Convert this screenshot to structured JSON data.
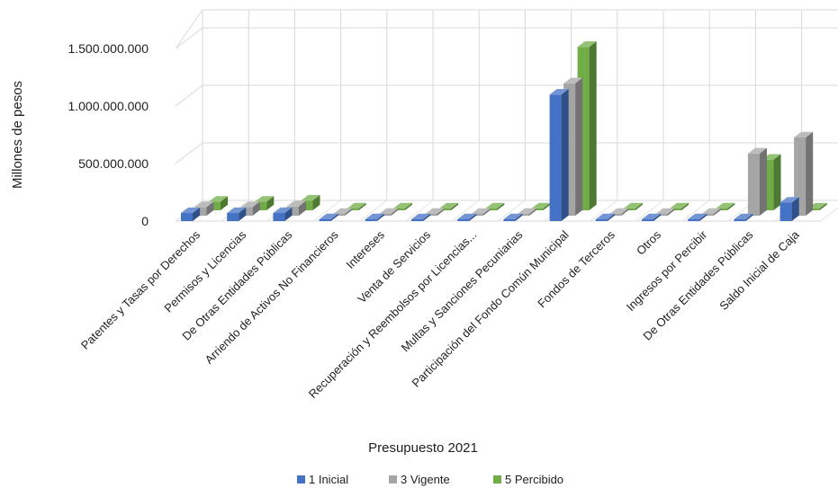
{
  "chart_data": {
    "type": "bar",
    "xlabel": "Presupuesto 2021",
    "ylabel": "Millones de pesos",
    "ylim": [
      0,
      1500000000
    ],
    "yticks": [
      0,
      500000000,
      1000000000,
      1500000000
    ],
    "ytick_labels": [
      "0",
      "500.000.000",
      "1.000.000.000",
      "1.500.000.000"
    ],
    "categories": [
      "Patentes y Tasas por Derechos",
      "Permisos y Licencias",
      "De Otras Entidades Públicas",
      "Arriendo de Activos No Financieros",
      "Intereses",
      "Venta de Servicios",
      "Recuperación y Reembolsos por Licencias...",
      "Multas y Sanciones Pecuniarias",
      "Participación del Fondo Común Municipal",
      "Fondos de Terceros",
      "Otros",
      "Ingresos por Percibir",
      "De Otras Entidades Públicas",
      "Saldo Inicial de Caja"
    ],
    "series": [
      {
        "name": "1 Inicial",
        "color": "#4472c4",
        "values": [
          70000000,
          70000000,
          70000000,
          5000000,
          5000000,
          3000000,
          5000000,
          3000000,
          1100000000,
          2000000,
          3000000,
          2000000,
          2000000,
          160000000
        ]
      },
      {
        "name": "3 Vigente",
        "color": "#a5a5a5",
        "values": [
          75000000,
          75000000,
          80000000,
          5000000,
          5000000,
          3000000,
          5000000,
          5000000,
          1150000000,
          5000000,
          5000000,
          5000000,
          540000000,
          680000000
        ]
      },
      {
        "name": "5 Percibido",
        "color": "#70ad47",
        "values": [
          75000000,
          75000000,
          85000000,
          5000000,
          10000000,
          3000000,
          5000000,
          3000000,
          1420000000,
          3000000,
          5000000,
          3000000,
          440000000,
          5000000
        ]
      }
    ],
    "grid": true,
    "legend": "bottom"
  }
}
